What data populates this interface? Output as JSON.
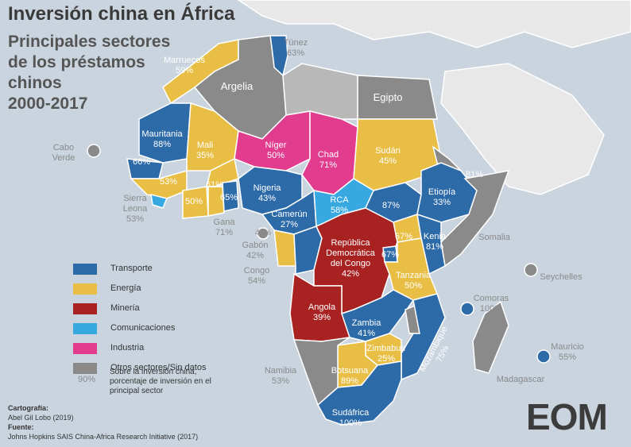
{
  "header": {
    "title": "Inversión china en África",
    "subtitle_lines": [
      "Principales sectores",
      "de los préstamos",
      "chinos",
      "2000-2017"
    ]
  },
  "sectors": {
    "transporte": "#2d6aa8",
    "energia": "#e8be44",
    "mineria": "#a82222",
    "comunicaciones": "#38a9e0",
    "industria": "#e23c8e",
    "otros": "#8a8a8a"
  },
  "legend": {
    "items": [
      {
        "label": "Transporte",
        "sector": "transporte"
      },
      {
        "label": "Energía",
        "sector": "energia"
      },
      {
        "label": "Minería",
        "sector": "mineria"
      },
      {
        "label": "Comunicaciones",
        "sector": "comunicaciones"
      },
      {
        "label": "Industria",
        "sector": "industria"
      },
      {
        "label": "Otros sectores/Sin datos",
        "sector": "otros"
      }
    ],
    "note": "Sobre la inversión china, porcentaje de inversión en el principal sector",
    "example_pct": "90%"
  },
  "countries": {
    "marruecos": {
      "name": "Marruecos",
      "pct": "59%",
      "sector": "energia"
    },
    "tunez": {
      "name": "Túnez",
      "pct": "63%",
      "sector": "transporte"
    },
    "argelia": {
      "name": "Argelia",
      "pct": "",
      "sector": "otros"
    },
    "egipto": {
      "name": "Egipto",
      "pct": "",
      "sector": "otros"
    },
    "mauritania": {
      "name": "Mauritania",
      "pct": "88%",
      "sector": "transporte"
    },
    "mali": {
      "name": "Mali",
      "pct": "35%",
      "sector": "energia"
    },
    "niger": {
      "name": "Níger",
      "pct": "50%",
      "sector": "industria"
    },
    "chad": {
      "name": "Chad",
      "pct": "71%",
      "sector": "industria"
    },
    "sudan": {
      "name": "Sudán",
      "pct": "45%",
      "sector": "energia"
    },
    "senegal": {
      "name": "",
      "pct": "66%",
      "sector": "transporte"
    },
    "guinea": {
      "name": "",
      "pct": "53%",
      "sector": "energia"
    },
    "costa_marfil": {
      "name": "",
      "pct": "50%",
      "sector": "energia"
    },
    "burkina": {
      "name": "",
      "pct": "61%",
      "sector": "energia"
    },
    "togo": {
      "name": "",
      "pct": "65%",
      "sector": "transporte"
    },
    "nigeria": {
      "name": "Nigeria",
      "pct": "43%",
      "sector": "transporte"
    },
    "camerun": {
      "name": "Camerún",
      "pct": "27%",
      "sector": "transporte"
    },
    "rca": {
      "name": "RCA",
      "pct": "58%",
      "sector": "comunicaciones"
    },
    "sudan_sur": {
      "name": "",
      "pct": "87%",
      "sector": "transporte"
    },
    "etiopia": {
      "name": "Etiopía",
      "pct": "33%",
      "sector": "transporte"
    },
    "eritrea": {
      "name": "",
      "pct": "81%",
      "sector": "otros"
    },
    "somalia": {
      "name": "Somalia",
      "pct": "",
      "sector": "otros"
    },
    "kenia": {
      "name": "Kenia",
      "pct": "81%",
      "sector": "transporte"
    },
    "uganda": {
      "name": "",
      "pct": "67%",
      "sector": "energia"
    },
    "ruanda": {
      "name": "",
      "pct": "67%",
      "sector": "transporte"
    },
    "rdc": {
      "name_lines": [
        "República",
        "Democrática",
        "del Congo"
      ],
      "pct": "42%",
      "sector": "mineria"
    },
    "tanzania": {
      "name": "Tanzania",
      "pct": "50%",
      "sector": "energia"
    },
    "angola": {
      "name": "Angola",
      "pct": "39%",
      "sector": "mineria"
    },
    "zambia": {
      "name": "Zambia",
      "pct": "41%",
      "sector": "transporte"
    },
    "zimbabue": {
      "name": "Zimbabue",
      "pct": "25%",
      "sector": "energia"
    },
    "mozambique": {
      "name": "Mozambique",
      "pct": "75%",
      "sector": "transporte"
    },
    "botsuana": {
      "name": "Botsuana",
      "pct": "89%",
      "sector": "energia"
    },
    "namibia": {
      "name": "Namibia",
      "pct": "53%",
      "sector": "otros"
    },
    "sudafrica": {
      "name": "Sudáfrica",
      "pct": "100%",
      "sector": "transporte"
    },
    "madagascar": {
      "name": "Madagascar",
      "pct": "",
      "sector": "otros"
    },
    "cabo_verde": {
      "name_lines": [
        "Cabo",
        "Verde"
      ],
      "sector": "otros"
    },
    "sierra_leona": {
      "name_lines": [
        "Sierra",
        "Leona"
      ],
      "pct": "53%",
      "sector": "comunicaciones"
    },
    "gana": {
      "name": "Gana",
      "pct": "71%",
      "sector": "energia"
    },
    "guinea_ecuatorial": {
      "pct": "43%",
      "sector": "otros"
    },
    "gabon": {
      "name": "Gabón",
      "pct": "42%",
      "sector": "energia"
    },
    "congo": {
      "name": "Congo",
      "pct": "54%",
      "sector": "transporte"
    },
    "seychelles": {
      "name": "Seychelles",
      "sector": "otros"
    },
    "comoras": {
      "name": "Comoras",
      "pct": "100%",
      "sector": "transporte"
    },
    "mauricio": {
      "name": "Mauricio",
      "pct": "55%",
      "sector": "transporte"
    }
  },
  "credits": {
    "cartography_label": "Cartografía:",
    "cartography_value": "Abel Gil Lobo (2019)",
    "source_label": "Fuente:",
    "source_value": "Johns Hopkins SAIS China-Africa Research Initiative (2017)"
  },
  "logo": {
    "text": "EOM"
  }
}
